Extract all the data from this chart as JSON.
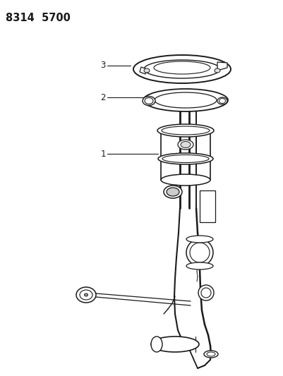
{
  "title_text": "8314  5700",
  "bg_color": "#ffffff",
  "line_color": "#1a1a1a",
  "label_1": "1",
  "label_2": "2",
  "label_3": "3",
  "title_fontsize": 10.5
}
